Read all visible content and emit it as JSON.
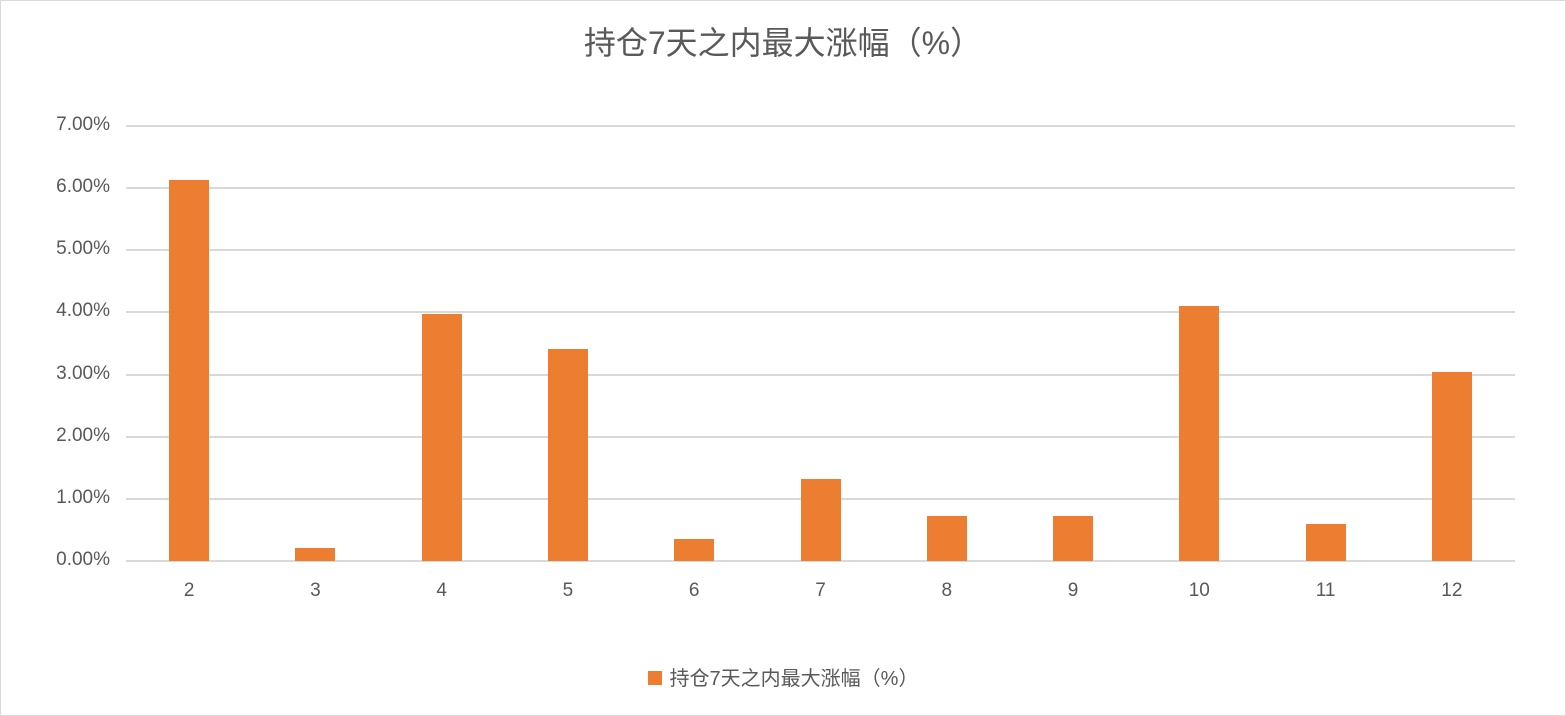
{
  "chart_data": {
    "type": "bar",
    "title": "持仓7天之内最大涨幅（%）",
    "xlabel": "",
    "ylabel": "",
    "categories": [
      "2",
      "3",
      "4",
      "5",
      "6",
      "7",
      "8",
      "9",
      "10",
      "11",
      "12"
    ],
    "series": [
      {
        "name": "持仓7天之内最大涨幅（%）",
        "color": "#ed7d31",
        "values": [
          6.13,
          0.21,
          3.98,
          3.41,
          0.35,
          1.32,
          0.72,
          0.72,
          4.11,
          0.6,
          3.04
        ]
      }
    ],
    "ylim": [
      0,
      7
    ],
    "yticks": [
      "0.00%",
      "1.00%",
      "2.00%",
      "3.00%",
      "4.00%",
      "5.00%",
      "6.00%",
      "7.00%"
    ],
    "grid": true,
    "legend_position": "bottom"
  },
  "legend": {
    "label": "持仓7天之内最大涨幅（%）"
  }
}
